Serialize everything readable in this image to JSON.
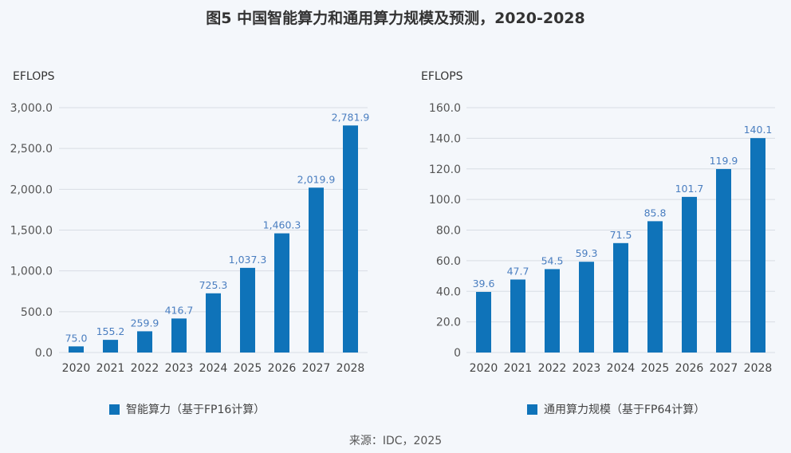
{
  "title": "图5 中国智能算力和通用算力规模及预测，2020-2028",
  "source": "来源：IDC，2025",
  "colors": {
    "bar": "#0f73b9",
    "label": "#4a7ec0",
    "grid": "#d8dde4",
    "background": "#f4f7fb"
  },
  "chart_data": [
    {
      "type": "bar",
      "title": "",
      "ylabel": "EFLOPS",
      "xlabel": "",
      "categories": [
        "2020",
        "2021",
        "2022",
        "2023",
        "2024",
        "2025",
        "2026",
        "2027",
        "2028"
      ],
      "series": [
        {
          "name": "智能算力（基于FP16计算）",
          "values": [
            75.0,
            155.2,
            259.9,
            416.7,
            725.3,
            1037.3,
            1460.3,
            2019.9,
            2781.9
          ]
        }
      ],
      "data_labels": [
        "75.0",
        "155.2",
        "259.9",
        "416.7",
        "725.3",
        "1,037.3",
        "1,460.3",
        "2,019.9",
        "2,781.9"
      ],
      "ylim": [
        0,
        3000
      ],
      "yticks": [
        0,
        500,
        1000,
        1500,
        2000,
        2500,
        3000
      ],
      "ytick_labels": [
        "0.0",
        "500.0",
        "1,000.0",
        "1,500.0",
        "2,000.0",
        "2,500.0",
        "3,000.0"
      ],
      "grid": true,
      "legend": "bottom"
    },
    {
      "type": "bar",
      "title": "",
      "ylabel": "EFLOPS",
      "xlabel": "",
      "categories": [
        "2020",
        "2021",
        "2022",
        "2023",
        "2024",
        "2025",
        "2026",
        "2027",
        "2028"
      ],
      "series": [
        {
          "name": "通用算力规模（基于FP64计算）",
          "values": [
            39.6,
            47.7,
            54.5,
            59.3,
            71.5,
            85.8,
            101.7,
            119.9,
            140.1
          ]
        }
      ],
      "data_labels": [
        "39.6",
        "47.7",
        "54.5",
        "59.3",
        "71.5",
        "85.8",
        "101.7",
        "119.9",
        "140.1"
      ],
      "ylim": [
        0,
        160
      ],
      "yticks": [
        0,
        20,
        40,
        60,
        80,
        100,
        120,
        140,
        160
      ],
      "ytick_labels": [
        "0",
        "20.0",
        "40.0",
        "60.0",
        "80.0",
        "100.0",
        "120.0",
        "140.0",
        "160.0"
      ],
      "grid": true,
      "legend": "bottom"
    }
  ]
}
